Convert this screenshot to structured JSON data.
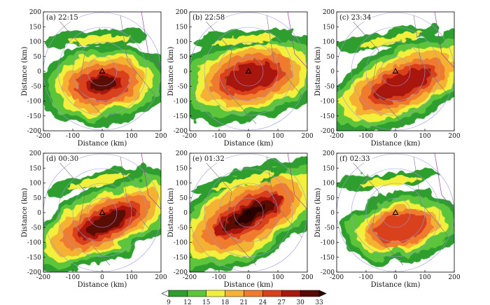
{
  "chart_data": {
    "type": "heatmap",
    "panels": [
      {
        "label": "(a) 22:15",
        "xlabel": "Distance (km)",
        "ylabel": "Distance (km)",
        "xlim": [
          -200,
          200
        ],
        "ylim": [
          -200,
          200
        ]
      },
      {
        "label": "(b) 22:58",
        "xlabel": "Distance (km)",
        "ylabel": "Distance (km)",
        "xlim": [
          -200,
          200
        ],
        "ylim": [
          -200,
          200
        ]
      },
      {
        "label": "(c) 23:34",
        "xlabel": "Distance (km)",
        "ylabel": "Distance (km)",
        "xlim": [
          -200,
          200
        ],
        "ylim": [
          -200,
          200
        ]
      },
      {
        "label": "(d) 00:30",
        "xlabel": "Distance (km)",
        "ylabel": "Distance (km)",
        "xlim": [
          -200,
          200
        ],
        "ylim": [
          -200,
          200
        ]
      },
      {
        "label": "(e) 01:32",
        "xlabel": "Distance (km)",
        "ylabel": "Distance (km)",
        "xlim": [
          -200,
          200
        ],
        "ylim": [
          -200,
          200
        ]
      },
      {
        "label": "(f) 02:33",
        "xlabel": "Distance (km)",
        "ylabel": "Distance (km)",
        "xlim": [
          -200,
          200
        ],
        "ylim": [
          -200,
          200
        ]
      }
    ],
    "x_ticks": [
      -200,
      -100,
      0,
      100,
      200
    ],
    "y_ticks": [
      200,
      150,
      100,
      50,
      0,
      -50,
      -100,
      -150,
      -200
    ],
    "colorbar": {
      "ticks": [
        9,
        12,
        15,
        18,
        21,
        24,
        27,
        30,
        33
      ],
      "colors": [
        "#ffffff",
        "#2e9e2e",
        "#5cc53a",
        "#f2ef3c",
        "#f5b233",
        "#ef7b2e",
        "#d9411c",
        "#a8190c",
        "#5a0a05",
        "#2a0503"
      ]
    },
    "grid": false,
    "legend": "bottom-center colorbar"
  }
}
